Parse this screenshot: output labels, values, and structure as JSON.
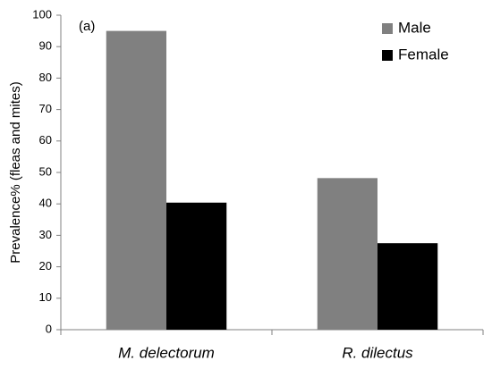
{
  "chart_data": {
    "type": "bar",
    "annotation": "(a)",
    "y_label": "Prevalence% (fleas and mites)",
    "categories": [
      "M. delectorum",
      "R. dilectus"
    ],
    "series": [
      {
        "name": "Male",
        "color": "#808080",
        "values": [
          95,
          48.2
        ]
      },
      {
        "name": "Female",
        "color": "#000000",
        "values": [
          40.4,
          27.5
        ]
      }
    ],
    "ylim": [
      0,
      100
    ],
    "yticks": [
      0,
      10,
      20,
      30,
      40,
      50,
      60,
      70,
      80,
      90,
      100
    ],
    "legend": "upper-right",
    "grid": false
  }
}
